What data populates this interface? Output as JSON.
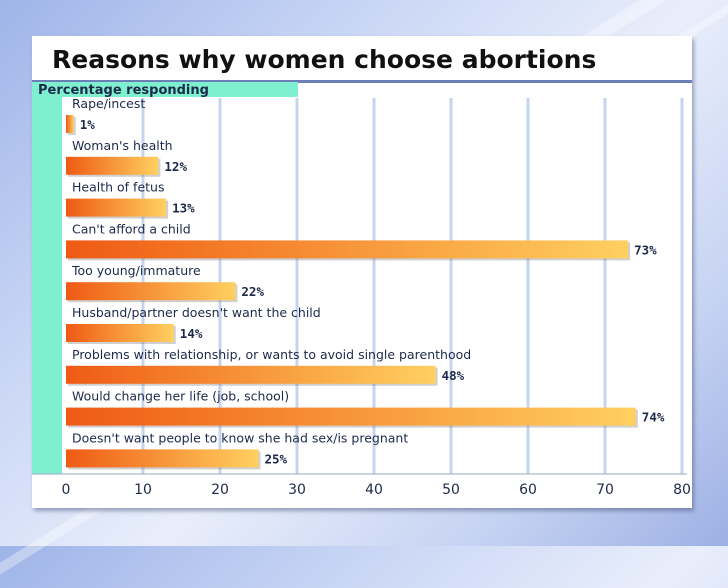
{
  "slide": {
    "title": "Reasons why women choose abortions"
  },
  "colors": {
    "panel_strip": "#7ef0cf",
    "bar_start": "#ef5a14",
    "bar_end": "#ffd060",
    "gridline": "#c6d4ee",
    "label_text": "#1d2a4a",
    "title_text": "#111111"
  },
  "chart_data": {
    "type": "bar",
    "orientation": "horizontal",
    "title": "Percentage responding",
    "xlabel": "",
    "ylabel": "",
    "xlim": [
      0,
      80
    ],
    "x_ticks": [
      0,
      10,
      20,
      30,
      40,
      50,
      60,
      70,
      80
    ],
    "grid": true,
    "categories": [
      "Rape/incest",
      "Woman's health",
      "Health of fetus",
      "Can't afford a child",
      "Too young/immature",
      "Husband/partner doesn't want the child",
      "Problems with relationship, or wants to avoid single parenthood",
      "Would change her life (job, school)",
      "Doesn't want people to know she had sex/is pregnant"
    ],
    "values": [
      1,
      12,
      13,
      73,
      22,
      14,
      48,
      74,
      25
    ],
    "value_labels": [
      "1%",
      "12%",
      "13%",
      "73%",
      "22%",
      "14%",
      "48%",
      "74%",
      "25%"
    ]
  }
}
